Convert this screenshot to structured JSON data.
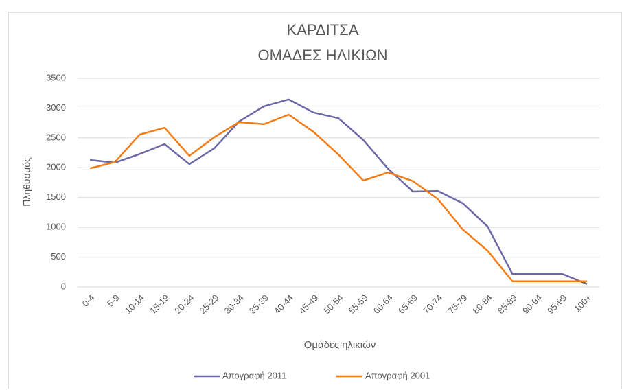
{
  "chart_data": {
    "type": "line",
    "title": "ΚΑΡΔΙΤΣΑ",
    "subtitle": "ΟΜΑΔΕΣ ΗΛΙΚΙΩΝ",
    "x_label": "Ομάδες ηλικιών",
    "y_label": "Πληθυσμός",
    "categories": [
      "0-4",
      "5-9",
      "10-14",
      "15-19",
      "20-24",
      "25-29",
      "30-34",
      "35-39",
      "40-44",
      "45-49",
      "50-54",
      "55-59",
      "60-64",
      "65-69",
      "70-74",
      "75-79",
      "80-84",
      "85-89",
      "90-94",
      "95-99",
      "100+"
    ],
    "series": [
      {
        "name": "Απογραφή 2011",
        "color": "#6b68a6",
        "values": [
          2130,
          2085,
          2230,
          2395,
          2060,
          2325,
          2775,
          3030,
          3145,
          2925,
          2830,
          2465,
          1980,
          1600,
          1610,
          1405,
          1015,
          220,
          220,
          220,
          50
        ]
      },
      {
        "name": "Απογραφή 2001",
        "color": "#f47b12",
        "values": [
          1990,
          2095,
          2555,
          2670,
          2200,
          2510,
          2765,
          2730,
          2890,
          2600,
          2220,
          1785,
          1920,
          1775,
          1475,
          965,
          610,
          95,
          95,
          95,
          95
        ]
      }
    ],
    "ylim": [
      0,
      3500
    ],
    "yticks": [
      0,
      500,
      1000,
      1500,
      2000,
      2500,
      3000,
      3500
    ],
    "grid": true,
    "legend": "bottom"
  }
}
